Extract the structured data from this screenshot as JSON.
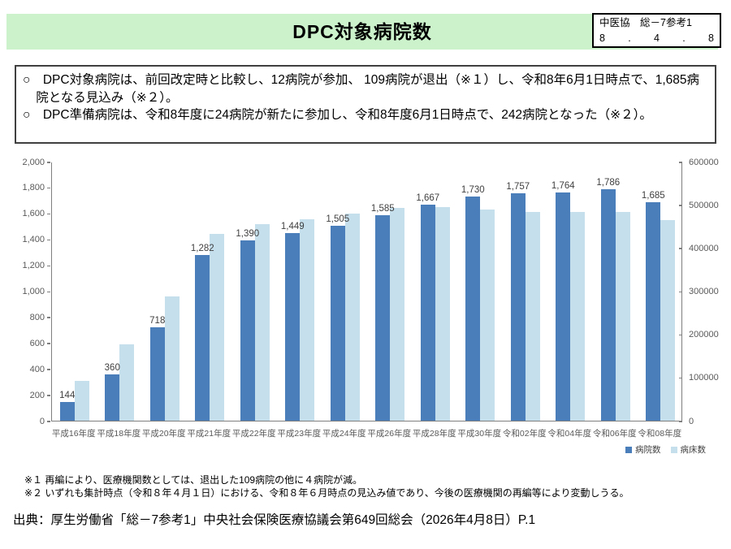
{
  "header": {
    "title": "DPC対象病院数",
    "doc_ref_line1": "中医協　総－7参考1",
    "doc_ref_line2": [
      "8",
      ".",
      "4",
      ".",
      "8"
    ]
  },
  "summary": {
    "bullets": [
      "○　DPC対象病院は、前回改定時と比較し、12病院が参加、 109病院が退出（※１）し、令和8年6月1日時点で、1,685病院となる見込み（※２）。",
      "○　DPC準備病院は、令和8年度に24病院が新たに参加し、令和8年度6月1日時点で、242病院となった（※２）。"
    ]
  },
  "chart_data": {
    "type": "bar",
    "title": "",
    "categories": [
      "平成16年度",
      "平成18年度",
      "平成20年度",
      "平成21年度",
      "平成22年度",
      "平成23年度",
      "平成24年度",
      "平成26年度",
      "平成28年度",
      "平成30年度",
      "令和02年度",
      "令和04年度",
      "令和06年度",
      "令和08年度"
    ],
    "series": [
      {
        "name": "病院数",
        "axis": "left",
        "color": "#4a7ebb",
        "values": [
          144,
          360,
          718,
          1282,
          1390,
          1449,
          1505,
          1585,
          1667,
          1730,
          1757,
          1764,
          1786,
          1685
        ],
        "labels": [
          "144",
          "360",
          "718",
          "1,282",
          "1,390",
          "1,449",
          "1,505",
          "1,585",
          "1,667",
          "1,730",
          "1,757",
          "1,764",
          "1,786",
          "1,685"
        ]
      },
      {
        "name": "病床数",
        "axis": "right",
        "color": "#c5dfed",
        "values": [
          93000,
          177000,
          287000,
          433000,
          456000,
          466000,
          479000,
          492000,
          494000,
          489000,
          483000,
          483000,
          483000,
          464000
        ],
        "labels": []
      }
    ],
    "left_axis": {
      "min": 0,
      "max": 2000,
      "step": 200,
      "ticks": [
        "0",
        "200",
        "400",
        "600",
        "800",
        "1,000",
        "1,200",
        "1,400",
        "1,600",
        "1,800",
        "2,000"
      ]
    },
    "right_axis": {
      "min": 0,
      "max": 600000,
      "step": 100000,
      "ticks": [
        "0",
        "100000",
        "200000",
        "300000",
        "400000",
        "500000",
        "600000"
      ]
    },
    "legend": [
      "病院数",
      "病床数"
    ],
    "legend_position": "bottom-right",
    "grid": false,
    "note": "病床数 values are estimated from bar heights; no data labels shown for that series"
  },
  "footnotes": [
    "※１ 再編により、医療機関数としては、退出した109病院の他に４病院が減。",
    "※２ いずれも集計時点（令和８年４月１日）における、令和８年６月時点の見込み値であり、今後の医療機関の再編等により変動しうる。"
  ],
  "source": "出典：厚生労働省「総－7参考1」中央社会保険医療協議会第649回総会（2026年4月8日）P.1"
}
